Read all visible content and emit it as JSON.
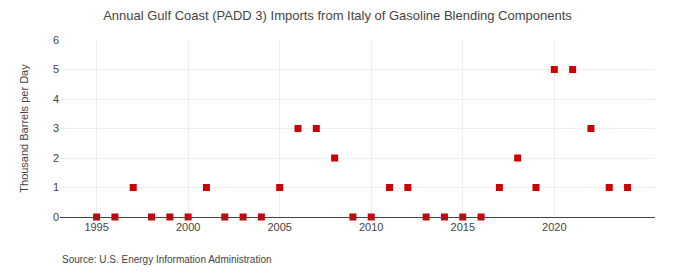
{
  "chart_data": {
    "type": "scatter",
    "title": "Annual Gulf Coast (PADD 3) Imports from Italy of Gasoline Blending Components",
    "ylabel": "Thousand Barrels per Day",
    "annotations": [
      "Source: U.S. Energy Information Administration"
    ],
    "x": [
      1995,
      1996,
      1997,
      1998,
      1999,
      2000,
      2001,
      2002,
      2003,
      2004,
      2005,
      2006,
      2007,
      2008,
      2009,
      2010,
      2011,
      2012,
      2013,
      2014,
      2015,
      2016,
      2017,
      2018,
      2019,
      2020,
      2021,
      2022,
      2023,
      2024
    ],
    "values": [
      0,
      0,
      1,
      0,
      0,
      0,
      1,
      0,
      0,
      0,
      1,
      3,
      3,
      2,
      0,
      0,
      1,
      1,
      0,
      0,
      0,
      0,
      1,
      2,
      1,
      5,
      5,
      3,
      1,
      1
    ],
    "color": "#cc0000",
    "marker": "square",
    "xlim": [
      1993,
      2025.5
    ],
    "xticks": [
      1995,
      2000,
      2005,
      2010,
      2015,
      2020
    ],
    "ylim": [
      0,
      6
    ],
    "yticks": [
      0,
      1,
      2,
      3,
      4,
      5,
      6
    ],
    "grid": true
  }
}
